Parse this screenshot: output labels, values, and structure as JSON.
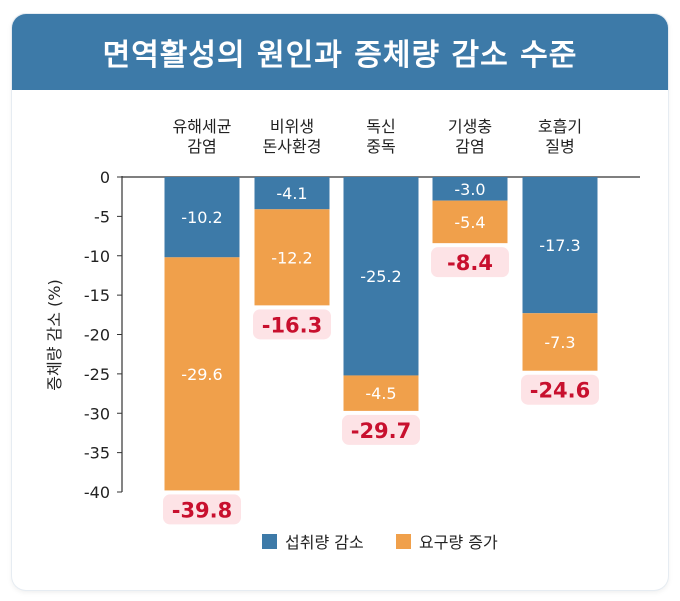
{
  "title": "면역활성의 원인과 증체량 감소 수준",
  "chart_data": {
    "type": "bar",
    "stacked": true,
    "categories": [
      [
        "유해세균",
        "감염"
      ],
      [
        "비위생",
        "돈사환경"
      ],
      [
        "독신",
        "중독"
      ],
      [
        "기생충",
        "감염"
      ],
      [
        "호흡기",
        "질병"
      ]
    ],
    "series": [
      {
        "name": "섭취량 감소",
        "color": "#3d7aa8",
        "values": [
          -10.2,
          -4.1,
          -25.2,
          -3.0,
          -17.3
        ]
      },
      {
        "name": "요구량 증가",
        "color": "#f0a04b",
        "values": [
          -29.6,
          -12.2,
          -4.5,
          -5.4,
          -7.3
        ]
      }
    ],
    "totals": [
      -39.8,
      -16.3,
      -29.7,
      -8.4,
      -24.6
    ],
    "ylabel": "증체량 감소 (%)",
    "ylim": [
      -40,
      0
    ],
    "yticks": [
      0,
      -5,
      -10,
      -15,
      -20,
      -25,
      -30,
      -35,
      -40
    ],
    "grid": false,
    "legend": "bottom",
    "total_label_color": "#c8102e",
    "total_label_bg": "#fde3e6"
  }
}
